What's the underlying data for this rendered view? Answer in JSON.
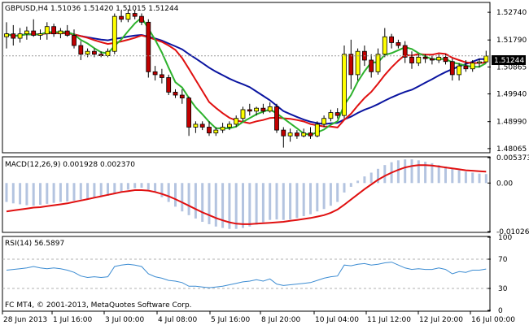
{
  "title": "GBPUSD,H4  1.51036 1.51420 1.51015 1.51244",
  "copyright": "FC MT4, © 2001-2013, MetaQuotes Software Corp.",
  "colors": {
    "background": "#ffffff",
    "frame": "#000000",
    "grid": "#c8c8c8",
    "bull_candle": "#ffff00",
    "bear_candle": "#c00000",
    "wick": "#000000",
    "ma_fast": "#2db22d",
    "ma_mid": "#e01010",
    "ma_slow": "#0a14a0",
    "macd_hist": "#b4c4e0",
    "macd_signal": "#e01010",
    "rsi_line": "#3c8cd2",
    "price_tag_bg": "#000000",
    "price_tag_text": "#ffffff"
  },
  "price_panel": {
    "current_price": "1.51244",
    "y_ticks": [
      "1.52740",
      "1.51790",
      "1.50865",
      "1.49940",
      "1.48990",
      "1.48065"
    ]
  },
  "macd_panel": {
    "label": "MACD(12,26,9) 0.001928 0.002370",
    "y_ticks": [
      "0.005373",
      "0.00",
      "-0.010263"
    ]
  },
  "rsi_panel": {
    "label": "RSI(14) 56.5897",
    "y_ticks": [
      "100",
      "70",
      "30",
      "0"
    ]
  },
  "x_axis": {
    "labels": [
      "28 Jun 2013",
      "1 Jul 16:00",
      "3 Jul 00:00",
      "4 Jul 08:00",
      "5 Jul 16:00",
      "8 Jul 20:00",
      "10 Jul 04:00",
      "11 Jul 12:00",
      "12 Jul 20:00",
      "16 Jul 00:00"
    ]
  },
  "chart_data": [
    {
      "type": "candlestick",
      "title": "GBPUSD,H4  1.51036 1.51420 1.51015 1.51244",
      "ylim": [
        1.4795,
        1.5305
      ],
      "candles": [
        {
          "o": 1.519,
          "h": 1.524,
          "l": 1.515,
          "c": 1.52
        },
        {
          "o": 1.52,
          "h": 1.523,
          "l": 1.516,
          "c": 1.5185
        },
        {
          "o": 1.5185,
          "h": 1.522,
          "l": 1.517,
          "c": 1.52
        },
        {
          "o": 1.52,
          "h": 1.5225,
          "l": 1.518,
          "c": 1.521
        },
        {
          "o": 1.521,
          "h": 1.525,
          "l": 1.519,
          "c": 1.5195
        },
        {
          "o": 1.5195,
          "h": 1.5215,
          "l": 1.518,
          "c": 1.52
        },
        {
          "o": 1.52,
          "h": 1.524,
          "l": 1.518,
          "c": 1.5225
        },
        {
          "o": 1.5225,
          "h": 1.5235,
          "l": 1.519,
          "c": 1.52
        },
        {
          "o": 1.52,
          "h": 1.522,
          "l": 1.5185,
          "c": 1.521
        },
        {
          "o": 1.521,
          "h": 1.523,
          "l": 1.519,
          "c": 1.5195
        },
        {
          "o": 1.5195,
          "h": 1.5215,
          "l": 1.515,
          "c": 1.516
        },
        {
          "o": 1.516,
          "h": 1.5175,
          "l": 1.511,
          "c": 1.513
        },
        {
          "o": 1.513,
          "h": 1.515,
          "l": 1.512,
          "c": 1.514
        },
        {
          "o": 1.514,
          "h": 1.515,
          "l": 1.512,
          "c": 1.513
        },
        {
          "o": 1.513,
          "h": 1.514,
          "l": 1.512,
          "c": 1.5125
        },
        {
          "o": 1.5125,
          "h": 1.515,
          "l": 1.512,
          "c": 1.514
        },
        {
          "o": 1.514,
          "h": 1.527,
          "l": 1.513,
          "c": 1.526
        },
        {
          "o": 1.526,
          "h": 1.528,
          "l": 1.524,
          "c": 1.525
        },
        {
          "o": 1.525,
          "h": 1.5285,
          "l": 1.524,
          "c": 1.527
        },
        {
          "o": 1.527,
          "h": 1.528,
          "l": 1.525,
          "c": 1.526
        },
        {
          "o": 1.526,
          "h": 1.527,
          "l": 1.523,
          "c": 1.524
        },
        {
          "o": 1.524,
          "h": 1.525,
          "l": 1.505,
          "c": 1.507
        },
        {
          "o": 1.507,
          "h": 1.509,
          "l": 1.504,
          "c": 1.506
        },
        {
          "o": 1.506,
          "h": 1.508,
          "l": 1.503,
          "c": 1.505
        },
        {
          "o": 1.505,
          "h": 1.506,
          "l": 1.499,
          "c": 1.5
        },
        {
          "o": 1.5,
          "h": 1.501,
          "l": 1.498,
          "c": 1.499
        },
        {
          "o": 1.499,
          "h": 1.501,
          "l": 1.496,
          "c": 1.498
        },
        {
          "o": 1.498,
          "h": 1.4985,
          "l": 1.485,
          "c": 1.488
        },
        {
          "o": 1.488,
          "h": 1.49,
          "l": 1.486,
          "c": 1.489
        },
        {
          "o": 1.489,
          "h": 1.49,
          "l": 1.487,
          "c": 1.488
        },
        {
          "o": 1.488,
          "h": 1.49,
          "l": 1.485,
          "c": 1.486
        },
        {
          "o": 1.486,
          "h": 1.488,
          "l": 1.485,
          "c": 1.487
        },
        {
          "o": 1.487,
          "h": 1.4895,
          "l": 1.486,
          "c": 1.488
        },
        {
          "o": 1.488,
          "h": 1.49,
          "l": 1.487,
          "c": 1.489
        },
        {
          "o": 1.489,
          "h": 1.492,
          "l": 1.488,
          "c": 1.491
        },
        {
          "o": 1.491,
          "h": 1.495,
          "l": 1.49,
          "c": 1.494
        },
        {
          "o": 1.494,
          "h": 1.496,
          "l": 1.492,
          "c": 1.4935
        },
        {
          "o": 1.4935,
          "h": 1.495,
          "l": 1.492,
          "c": 1.4945
        },
        {
          "o": 1.4945,
          "h": 1.496,
          "l": 1.4925,
          "c": 1.4935
        },
        {
          "o": 1.4935,
          "h": 1.4965,
          "l": 1.493,
          "c": 1.495
        },
        {
          "o": 1.495,
          "h": 1.496,
          "l": 1.486,
          "c": 1.487
        },
        {
          "o": 1.487,
          "h": 1.488,
          "l": 1.481,
          "c": 1.485
        },
        {
          "o": 1.485,
          "h": 1.4875,
          "l": 1.483,
          "c": 1.486
        },
        {
          "o": 1.486,
          "h": 1.487,
          "l": 1.484,
          "c": 1.485
        },
        {
          "o": 1.485,
          "h": 1.4875,
          "l": 1.4845,
          "c": 1.486
        },
        {
          "o": 1.486,
          "h": 1.488,
          "l": 1.484,
          "c": 1.485
        },
        {
          "o": 1.485,
          "h": 1.49,
          "l": 1.4845,
          "c": 1.489
        },
        {
          "o": 1.489,
          "h": 1.492,
          "l": 1.488,
          "c": 1.491
        },
        {
          "o": 1.491,
          "h": 1.494,
          "l": 1.49,
          "c": 1.493
        },
        {
          "o": 1.493,
          "h": 1.4945,
          "l": 1.491,
          "c": 1.492
        },
        {
          "o": 1.492,
          "h": 1.516,
          "l": 1.491,
          "c": 1.513
        },
        {
          "o": 1.513,
          "h": 1.518,
          "l": 1.501,
          "c": 1.506
        },
        {
          "o": 1.506,
          "h": 1.515,
          "l": 1.504,
          "c": 1.514
        },
        {
          "o": 1.514,
          "h": 1.516,
          "l": 1.509,
          "c": 1.511
        },
        {
          "o": 1.511,
          "h": 1.513,
          "l": 1.505,
          "c": 1.507
        },
        {
          "o": 1.507,
          "h": 1.515,
          "l": 1.506,
          "c": 1.513
        },
        {
          "o": 1.513,
          "h": 1.522,
          "l": 1.512,
          "c": 1.519
        },
        {
          "o": 1.519,
          "h": 1.52,
          "l": 1.515,
          "c": 1.517
        },
        {
          "o": 1.517,
          "h": 1.518,
          "l": 1.515,
          "c": 1.516
        },
        {
          "o": 1.516,
          "h": 1.5175,
          "l": 1.51,
          "c": 1.512
        },
        {
          "o": 1.512,
          "h": 1.514,
          "l": 1.508,
          "c": 1.51
        },
        {
          "o": 1.51,
          "h": 1.513,
          "l": 1.509,
          "c": 1.512
        },
        {
          "o": 1.512,
          "h": 1.513,
          "l": 1.51,
          "c": 1.5115
        },
        {
          "o": 1.5115,
          "h": 1.5125,
          "l": 1.5095,
          "c": 1.511
        },
        {
          "o": 1.511,
          "h": 1.513,
          "l": 1.51,
          "c": 1.512
        },
        {
          "o": 1.512,
          "h": 1.513,
          "l": 1.5095,
          "c": 1.5105
        },
        {
          "o": 1.5105,
          "h": 1.5115,
          "l": 1.504,
          "c": 1.506
        },
        {
          "o": 1.506,
          "h": 1.51,
          "l": 1.504,
          "c": 1.509
        },
        {
          "o": 1.509,
          "h": 1.511,
          "l": 1.507,
          "c": 1.508
        },
        {
          "o": 1.508,
          "h": 1.511,
          "l": 1.507,
          "c": 1.51
        },
        {
          "o": 1.51,
          "h": 1.5115,
          "l": 1.5085,
          "c": 1.5104
        },
        {
          "o": 1.5104,
          "h": 1.5142,
          "l": 1.5101,
          "c": 1.5124
        }
      ]
    },
    {
      "type": "bar",
      "title": "MACD(12,26,9) 0.001928 0.002370",
      "ylim": [
        -0.010263,
        0.005373
      ],
      "values": [
        -0.004,
        -0.0043,
        -0.0045,
        -0.0047,
        -0.0048,
        -0.0046,
        -0.0044,
        -0.0042,
        -0.004,
        -0.0039,
        -0.0037,
        -0.0035,
        -0.0033,
        -0.0031,
        -0.0029,
        -0.0027,
        -0.0022,
        -0.0018,
        -0.0014,
        -0.0011,
        -0.001,
        -0.0014,
        -0.002,
        -0.003,
        -0.004,
        -0.005,
        -0.006,
        -0.0068,
        -0.0075,
        -0.0082,
        -0.0087,
        -0.0092,
        -0.0095,
        -0.0097,
        -0.0097,
        -0.0095,
        -0.0092,
        -0.0088,
        -0.0083,
        -0.0078,
        -0.0077,
        -0.0078,
        -0.0077,
        -0.0074,
        -0.007,
        -0.0066,
        -0.006,
        -0.0055,
        -0.0048,
        -0.004,
        -0.002,
        -0.0008,
        0.0005,
        0.0014,
        0.0022,
        0.003,
        0.0038,
        0.0044,
        0.0048,
        0.005,
        0.005,
        0.0048,
        0.0045,
        0.0042,
        0.0038,
        0.0035,
        0.003,
        0.0027,
        0.0024,
        0.0022,
        0.002,
        0.0019
      ],
      "signal": [
        -0.006,
        -0.0058,
        -0.0056,
        -0.0054,
        -0.0052,
        -0.0051,
        -0.0049,
        -0.0047,
        -0.0045,
        -0.0043,
        -0.004,
        -0.0037,
        -0.0034,
        -0.0031,
        -0.0028,
        -0.0025,
        -0.0022,
        -0.0019,
        -0.0017,
        -0.0015,
        -0.0015,
        -0.0016,
        -0.0019,
        -0.0023,
        -0.0028,
        -0.0034,
        -0.0041,
        -0.0048,
        -0.0055,
        -0.0062,
        -0.0068,
        -0.0074,
        -0.0079,
        -0.0083,
        -0.0086,
        -0.0087,
        -0.0087,
        -0.0086,
        -0.0085,
        -0.0084,
        -0.0083,
        -0.0082,
        -0.008,
        -0.0078,
        -0.0076,
        -0.0074,
        -0.0071,
        -0.0068,
        -0.0063,
        -0.0056,
        -0.0046,
        -0.0035,
        -0.0024,
        -0.0013,
        -0.0003,
        0.0007,
        0.0015,
        0.0022,
        0.0028,
        0.0033,
        0.0036,
        0.0038,
        0.0038,
        0.0037,
        0.0035,
        0.0033,
        0.0031,
        0.0029,
        0.0027,
        0.0026,
        0.0025,
        0.0024
      ]
    },
    {
      "type": "line",
      "title": "RSI(14) 56.5897",
      "ylim": [
        0,
        100
      ],
      "values": [
        55,
        56,
        57,
        58,
        60,
        58,
        57,
        58,
        57,
        55,
        52,
        47,
        45,
        46,
        45,
        46,
        60,
        62,
        63,
        62,
        60,
        50,
        46,
        44,
        41,
        40,
        38,
        33,
        33,
        32,
        31,
        32,
        33,
        35,
        37,
        39,
        40,
        42,
        40,
        43,
        36,
        34,
        35,
        36,
        37,
        38,
        41,
        44,
        46,
        47,
        62,
        61,
        63,
        64,
        62,
        63,
        65,
        66,
        62,
        58,
        56,
        57,
        56,
        56,
        58,
        56,
        50,
        53,
        52,
        55,
        55,
        56.59
      ]
    }
  ]
}
